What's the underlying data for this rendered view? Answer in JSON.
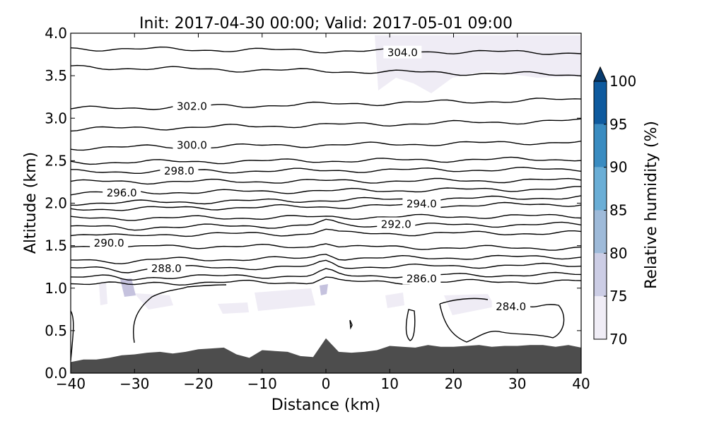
{
  "chart_data": {
    "type": "contour",
    "title": "Init: 2017-04-30 00:00; Valid: 2017-05-01 09:00",
    "xlabel": "Distance (km)",
    "ylabel": "Altitude (km)",
    "xlim": [
      -40,
      40
    ],
    "ylim": [
      0.0,
      4.0
    ],
    "xticks": [
      -40,
      -30,
      -20,
      -10,
      0,
      10,
      20,
      30,
      40
    ],
    "xtick_labels": [
      "−40",
      "−30",
      "−20",
      "−10",
      "0",
      "10",
      "20",
      "30",
      "40"
    ],
    "yticks": [
      0.0,
      0.5,
      1.0,
      1.5,
      2.0,
      2.5,
      3.0,
      3.5,
      4.0
    ],
    "ytick_labels": [
      "0.0",
      "0.5",
      "1.0",
      "1.5",
      "2.0",
      "2.5",
      "3.0",
      "3.5",
      "4.0"
    ],
    "contour_labels": [
      {
        "text": "304.0",
        "x": 12,
        "y": 3.77
      },
      {
        "text": "302.0",
        "x": -21,
        "y": 3.14
      },
      {
        "text": "300.0",
        "x": -21,
        "y": 2.68
      },
      {
        "text": "298.0",
        "x": -23,
        "y": 2.38
      },
      {
        "text": "296.0",
        "x": -32,
        "y": 2.12
      },
      {
        "text": "294.0",
        "x": 15,
        "y": 1.99
      },
      {
        "text": "292.0",
        "x": 11,
        "y": 1.75
      },
      {
        "text": "290.0",
        "x": -34,
        "y": 1.53
      },
      {
        "text": "288.0",
        "x": -25,
        "y": 1.23
      },
      {
        "text": "286.0",
        "x": 15,
        "y": 1.11
      },
      {
        "text": "284.0",
        "x": 29,
        "y": 0.78
      }
    ],
    "contour_levels": [
      284,
      286,
      288,
      290,
      292,
      294,
      296,
      298,
      300,
      302,
      304
    ],
    "contour_lines": [
      {
        "level": 286,
        "y_left": 1.06,
        "y_right": 1.08
      },
      {
        "level": 287,
        "y_left": 1.13,
        "y_right": 1.16
      },
      {
        "level": 288,
        "y_left": 1.23,
        "y_right": 1.27
      },
      {
        "level": 289,
        "y_left": 1.33,
        "y_right": 1.37
      },
      {
        "level": 290,
        "y_left": 1.5,
        "y_right": 1.47
      },
      {
        "level": 291,
        "y_left": 1.63,
        "y_right": 1.65
      },
      {
        "level": 292,
        "y_left": 1.72,
        "y_right": 1.75
      },
      {
        "level": 293,
        "y_left": 1.82,
        "y_right": 1.85
      },
      {
        "level": 294,
        "y_left": 1.93,
        "y_right": 1.99
      },
      {
        "level": 295,
        "y_left": 2.0,
        "y_right": 2.07
      },
      {
        "level": 296,
        "y_left": 2.12,
        "y_right": 2.17
      },
      {
        "level": 297,
        "y_left": 2.25,
        "y_right": 2.27
      },
      {
        "level": 298,
        "y_left": 2.37,
        "y_right": 2.4
      },
      {
        "level": 299,
        "y_left": 2.48,
        "y_right": 2.52
      },
      {
        "level": 300,
        "y_left": 2.65,
        "y_right": 2.72
      },
      {
        "level": 301,
        "y_left": 2.87,
        "y_right": 2.97
      },
      {
        "level": 302,
        "y_left": 3.11,
        "y_right": 3.22
      },
      {
        "level": 303,
        "y_left": 3.6,
        "y_right": 3.51
      },
      {
        "level": 304,
        "y_left": 3.82,
        "y_right": 3.77
      }
    ],
    "terrain_profile": {
      "x": [
        -40,
        -38,
        -36,
        -34,
        -32,
        -30,
        -28,
        -26,
        -24,
        -22,
        -20,
        -18,
        -16,
        -14,
        -12,
        -10,
        -8,
        -6,
        -4,
        -2,
        0,
        2,
        4,
        6,
        8,
        10,
        12,
        14,
        16,
        18,
        20,
        22,
        24,
        26,
        28,
        30,
        32,
        34,
        36,
        38,
        40
      ],
      "altitude": [
        0.13,
        0.16,
        0.16,
        0.18,
        0.21,
        0.22,
        0.24,
        0.25,
        0.23,
        0.25,
        0.28,
        0.29,
        0.3,
        0.22,
        0.18,
        0.27,
        0.26,
        0.25,
        0.2,
        0.19,
        0.41,
        0.25,
        0.24,
        0.25,
        0.27,
        0.32,
        0.31,
        0.3,
        0.33,
        0.31,
        0.31,
        0.32,
        0.33,
        0.31,
        0.32,
        0.32,
        0.33,
        0.33,
        0.31,
        0.33,
        0.3
      ],
      "color": "#4d4d4d"
    },
    "colorbar": {
      "label": "Relative humidity (%)",
      "levels": [
        70,
        75,
        80,
        85,
        90,
        95,
        100
      ],
      "tick_labels": [
        "70",
        "75",
        "80",
        "85",
        "90",
        "95",
        "100"
      ],
      "colors": [
        "#f0edf6",
        "#cccde5",
        "#9ebad9",
        "#6aaed6",
        "#3a8cc1",
        "#0e5a9e",
        "#083b6e"
      ],
      "extend": "max"
    },
    "rh_shading_color": "#e4e0ef",
    "grid": false
  }
}
